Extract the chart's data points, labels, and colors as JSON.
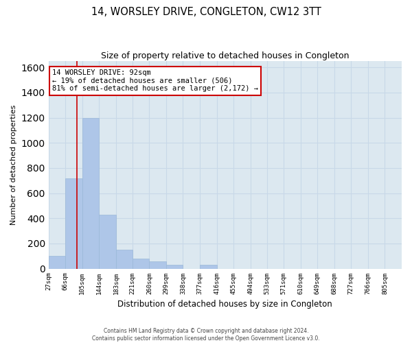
{
  "title1": "14, WORSLEY DRIVE, CONGLETON, CW12 3TT",
  "title2": "Size of property relative to detached houses in Congleton",
  "xlabel": "Distribution of detached houses by size in Congleton",
  "ylabel": "Number of detached properties",
  "bar_labels": [
    "27sqm",
    "66sqm",
    "105sqm",
    "144sqm",
    "183sqm",
    "221sqm",
    "260sqm",
    "299sqm",
    "338sqm",
    "377sqm",
    "416sqm",
    "455sqm",
    "494sqm",
    "533sqm",
    "571sqm",
    "610sqm",
    "649sqm",
    "688sqm",
    "727sqm",
    "766sqm",
    "805sqm"
  ],
  "bar_values": [
    100,
    720,
    1200,
    430,
    150,
    80,
    60,
    30,
    0,
    30,
    0,
    0,
    0,
    0,
    0,
    0,
    0,
    0,
    0,
    0,
    0
  ],
  "bar_color": "#aec6e8",
  "bar_edge_color": "#9ab8d8",
  "grid_color": "#c8d8e8",
  "background_color": "#dce8f0",
  "annotation_text": "14 WORSLEY DRIVE: 92sqm\n← 19% of detached houses are smaller (506)\n81% of semi-detached houses are larger (2,172) →",
  "annotation_box_color": "#ffffff",
  "annotation_border_color": "#cc0000",
  "vline_x": 92,
  "vline_color": "#cc0000",
  "ylim": [
    0,
    1650
  ],
  "bin_width": 39,
  "footer1": "Contains HM Land Registry data © Crown copyright and database right 2024.",
  "footer2": "Contains public sector information licensed under the Open Government Licence v3.0."
}
